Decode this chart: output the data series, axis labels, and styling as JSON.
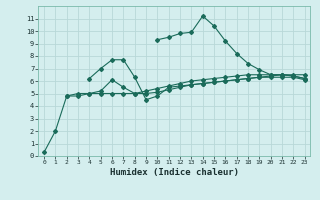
{
  "xlabel": "Humidex (Indice chaleur)",
  "ylabel": "",
  "bg_color": "#d4eeee",
  "grid_color": "#b8d8d8",
  "line_color": "#1a6b5a",
  "xlim": [
    -0.5,
    23.5
  ],
  "ylim": [
    0,
    12
  ],
  "xticks": [
    0,
    1,
    2,
    3,
    4,
    5,
    6,
    7,
    8,
    9,
    10,
    11,
    12,
    13,
    14,
    15,
    16,
    17,
    18,
    19,
    20,
    21,
    22,
    23
  ],
  "yticks": [
    0,
    1,
    2,
    3,
    4,
    5,
    6,
    7,
    8,
    9,
    10,
    11
  ],
  "series": [
    {
      "x": [
        0,
        1,
        2,
        3,
        4,
        5,
        6,
        7,
        8,
        9,
        10,
        11,
        12,
        13,
        14,
        15,
        16,
        17,
        18,
        19,
        20,
        21,
        22,
        23
      ],
      "y": [
        0.3,
        2.0,
        4.8,
        5.0,
        5.0,
        5.0,
        5.0,
        5.0,
        5.0,
        5.0,
        5.1,
        5.3,
        5.5,
        5.7,
        5.8,
        5.9,
        6.0,
        6.1,
        6.2,
        6.3,
        6.3,
        6.3,
        6.3,
        6.1
      ]
    },
    {
      "x": [
        2,
        3,
        4,
        5,
        6,
        7,
        8,
        9,
        10,
        11,
        12,
        13,
        14,
        15,
        16,
        17,
        18,
        19,
        20,
        21,
        22,
        23
      ],
      "y": [
        4.8,
        4.8,
        5.0,
        5.2,
        6.1,
        5.5,
        5.0,
        5.2,
        5.4,
        5.6,
        5.8,
        6.0,
        6.1,
        6.2,
        6.3,
        6.4,
        6.5,
        6.5,
        6.5,
        6.5,
        6.4,
        6.2
      ]
    },
    {
      "x": [
        4,
        5,
        6,
        7,
        8,
        9,
        10,
        11,
        12,
        13,
        14,
        15,
        16,
        17,
        18,
        19,
        20,
        21,
        22,
        23
      ],
      "y": [
        6.2,
        7.0,
        7.7,
        7.7,
        6.3,
        4.5,
        4.8,
        5.5,
        5.6,
        5.7,
        5.8,
        5.9,
        6.0,
        6.1,
        6.2,
        6.3,
        6.4,
        6.5,
        6.5,
        6.5
      ]
    },
    {
      "x": [
        10,
        11,
        12,
        13,
        14,
        15,
        16,
        17,
        18,
        19,
        20,
        21,
        22,
        23
      ],
      "y": [
        9.3,
        9.5,
        9.8,
        9.9,
        11.2,
        10.4,
        9.2,
        8.2,
        7.4,
        6.9,
        6.5,
        6.5,
        6.4,
        6.2
      ]
    }
  ]
}
